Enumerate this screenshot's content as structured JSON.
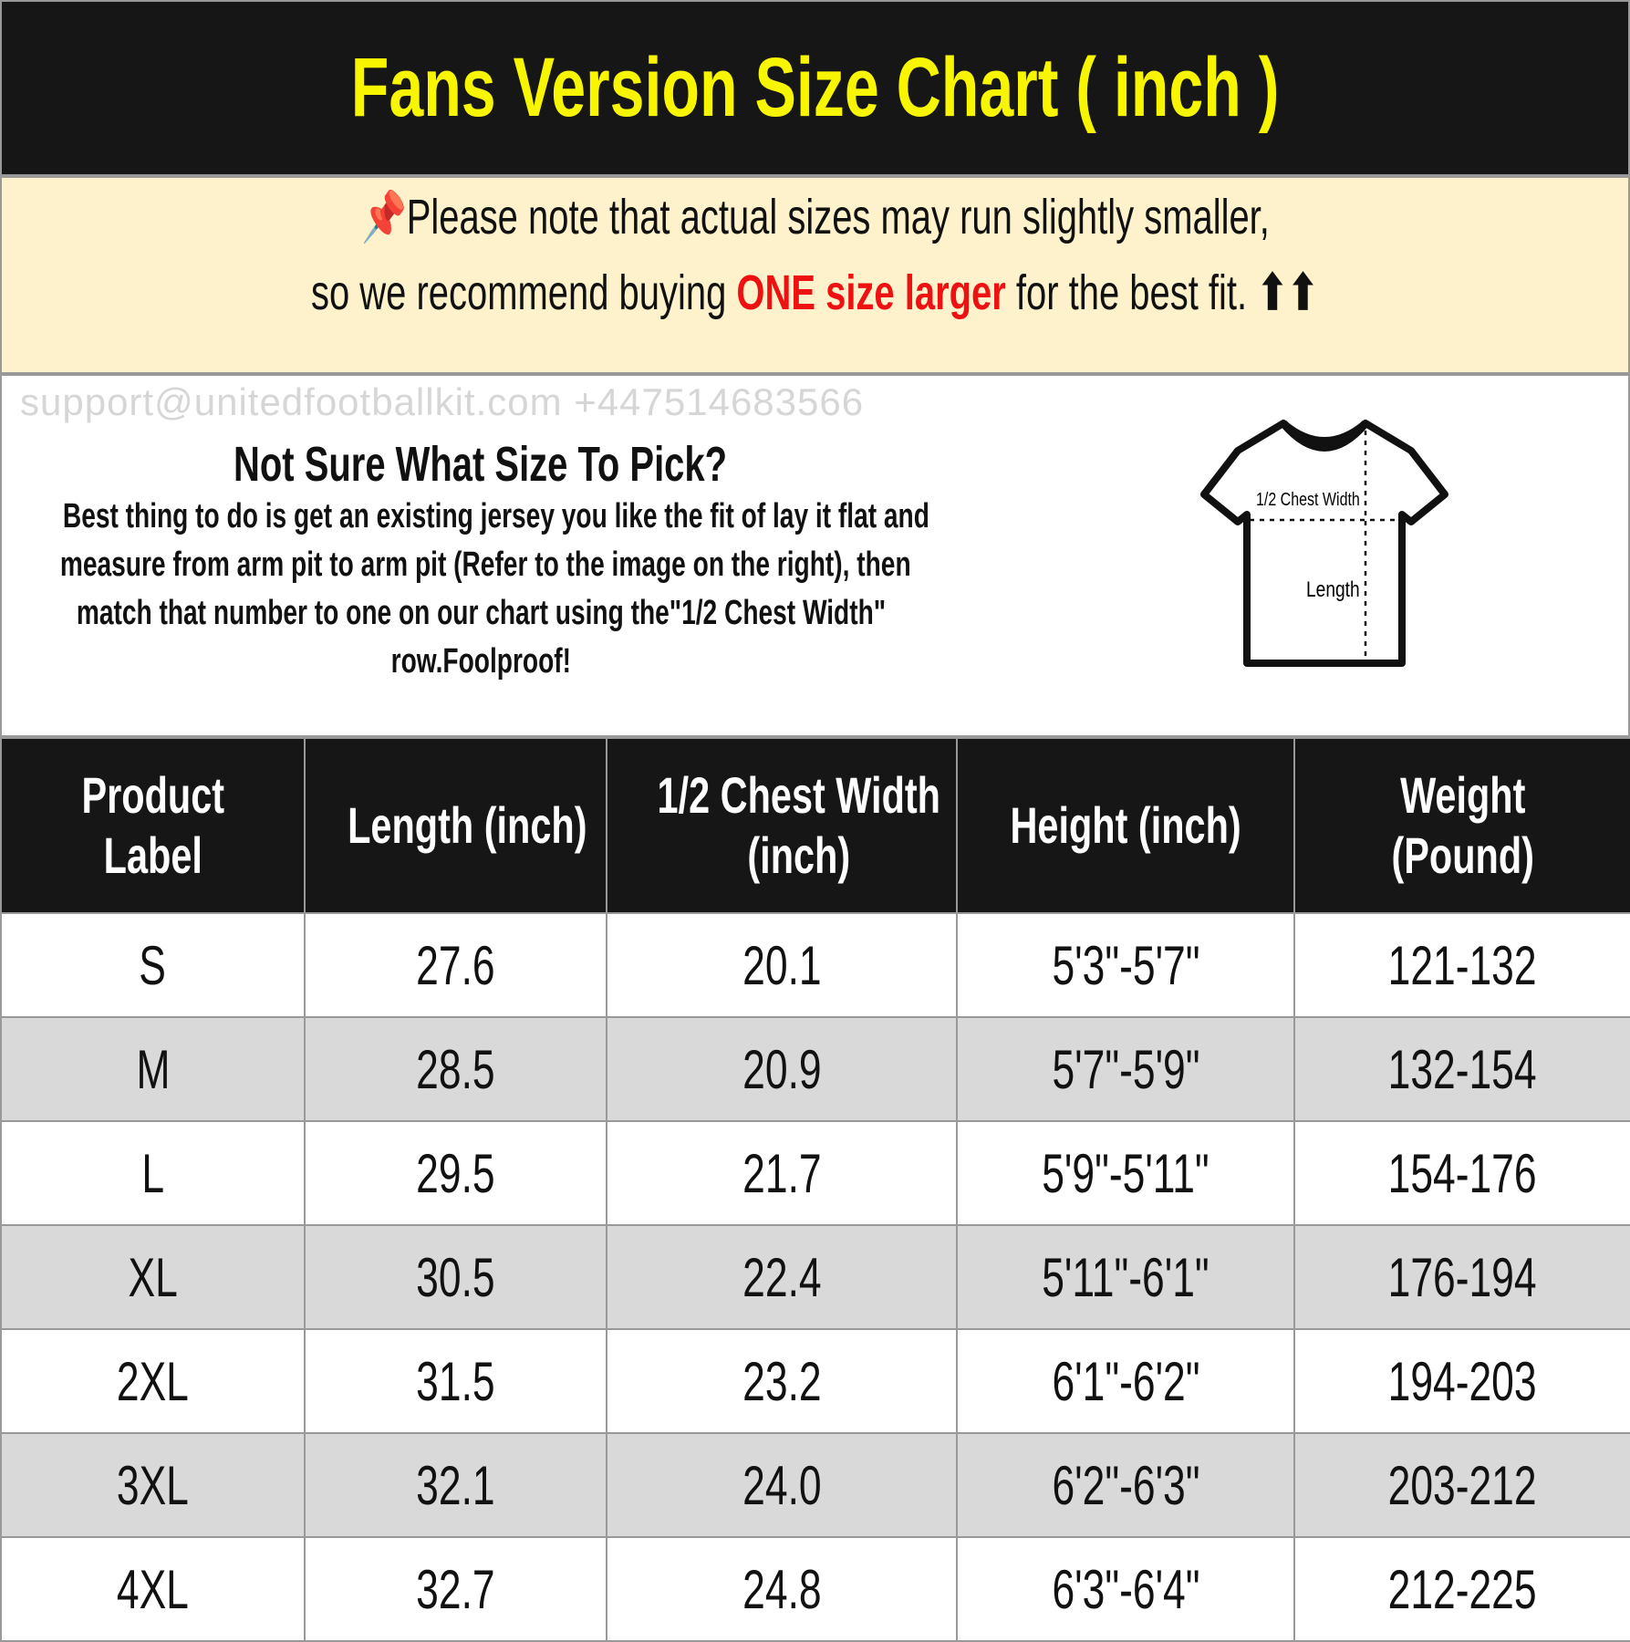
{
  "title": "Fans Version Size Chart ( inch )",
  "note": {
    "icon": "pushpin-icon",
    "line1": "Please note that actual sizes may run slightly smaller,",
    "line2_pre": "so we recommend buying ",
    "line2_highlight": "ONE size larger",
    "line2_post": " for the best fit.",
    "arrows": "⬆⬆",
    "highlight_color": "#ee1111"
  },
  "info": {
    "heading": "Not Sure What Size To Pick?",
    "lines": [
      "Best thing to do is get an existing jersey you like the fit of lay it flat and",
      "measure from arm pit to arm pit (Refer to the image on the right), then",
      "match that number to one on our chart using the\"1/2 Chest Width\"",
      "row.Foolproof!"
    ],
    "diagram": {
      "chest_label": "1/2 Chest Width",
      "length_label": "Length"
    }
  },
  "table": {
    "headers": [
      [
        "Product",
        "Label"
      ],
      [
        "Length (inch)",
        ""
      ],
      [
        "1/2 Chest Width",
        "(inch)"
      ],
      [
        "Height (inch)",
        ""
      ],
      [
        "Weight",
        "(Pound)"
      ]
    ],
    "rows": [
      [
        "S",
        "27.6",
        "20.1",
        "5'3\"-5'7\"",
        "121-132"
      ],
      [
        "M",
        "28.5",
        "20.9",
        "5'7\"-5'9\"",
        "132-154"
      ],
      [
        "L",
        "29.5",
        "21.7",
        "5'9\"-5'11\"",
        "154-176"
      ],
      [
        "XL",
        "30.5",
        "22.4",
        "5'11\"-6'1\"",
        "176-194"
      ],
      [
        "2XL",
        "31.5",
        "23.2",
        "6'1\"-6'2\"",
        "194-203"
      ],
      [
        "3XL",
        "32.1",
        "24.0",
        "6'2\"-6'3\"",
        "203-212"
      ],
      [
        "4XL",
        "32.7",
        "24.8",
        "6'3\"-6'4\"",
        "212-225"
      ]
    ]
  },
  "watermark": "support@unitedfootballkit.com  +447514683566"
}
